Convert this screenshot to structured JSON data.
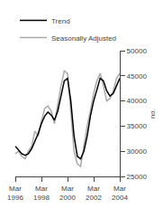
{
  "chart_data": {
    "type": "line",
    "categories": [
      "Mar\n1996",
      null,
      null,
      null,
      null,
      null,
      null,
      null,
      "Mar\n1998",
      null,
      null,
      null,
      null,
      null,
      null,
      null,
      "Mar\n2000",
      null,
      null,
      null,
      null,
      null,
      null,
      null,
      "Mar\n2002",
      null,
      null,
      null,
      null,
      null,
      null,
      null,
      "Mar\n2004"
    ],
    "series": [
      {
        "name": "Seasonally Adjusted",
        "color": "#aaaaaa",
        "values": [
          29500,
          30000,
          29000,
          28500,
          30000,
          31000,
          34000,
          33000,
          36000,
          38500,
          39000,
          38000,
          35500,
          39500,
          43000,
          46000,
          45500,
          38000,
          30000,
          27500,
          27000,
          31000,
          35000,
          38000,
          41500,
          44000,
          45500,
          43000,
          40000,
          40500,
          42000,
          44500,
          45500
        ]
      },
      {
        "name": "Trend",
        "color": "#000000",
        "values": [
          31000,
          30200,
          29500,
          29200,
          29500,
          30500,
          32000,
          33500,
          35500,
          37000,
          37800,
          37200,
          36200,
          38000,
          41000,
          44000,
          44500,
          40000,
          33000,
          29000,
          28500,
          30000,
          33000,
          37000,
          40000,
          42500,
          44500,
          44000,
          42000,
          41000,
          41500,
          43000,
          44500
        ]
      }
    ],
    "ylabel": "no.",
    "ylim": [
      25000,
      50000
    ],
    "yticks": [
      25000,
      30000,
      35000,
      40000,
      45000,
      50000
    ],
    "grid": false,
    "legend": "upper left"
  }
}
